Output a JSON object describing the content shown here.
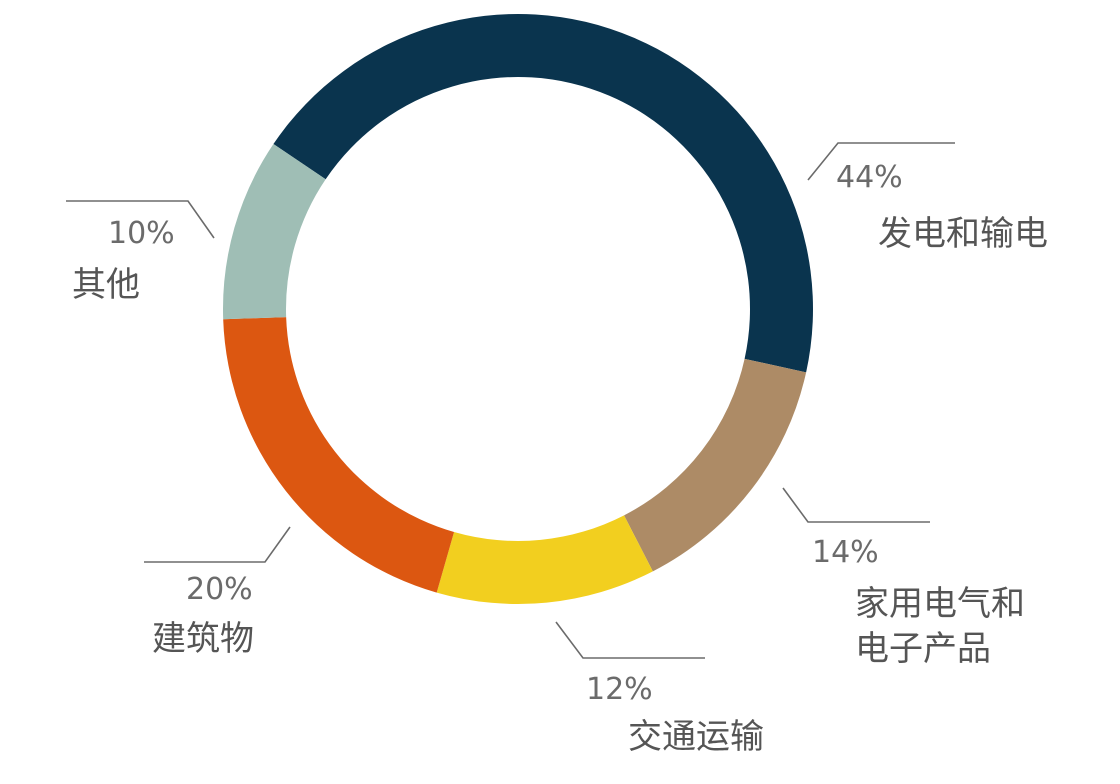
{
  "chart_data": {
    "type": "pie",
    "style": "donut",
    "slices": [
      {
        "label": "发电和输电",
        "label_lines": [
          "发电和输电"
        ],
        "value": 44,
        "value_label": "44%",
        "color": "#0a344e"
      },
      {
        "label": "家用电气和电子产品",
        "label_lines": [
          "家用电气和",
          "电子产品"
        ],
        "value": 14,
        "value_label": "14%",
        "color": "#ad8b66"
      },
      {
        "label": "交通运输",
        "label_lines": [
          "交通运输"
        ],
        "value": 12,
        "value_label": "12%",
        "color": "#f2cf1f"
      },
      {
        "label": "建筑物",
        "label_lines": [
          "建筑物"
        ],
        "value": 20,
        "value_label": "20%",
        "color": "#dc5711"
      },
      {
        "label": "其他",
        "label_lines": [
          "其他"
        ],
        "value": 10,
        "value_label": "10%",
        "color": "#9fbeb5"
      }
    ],
    "leader_line_color": "#6b6b6b",
    "label_color": "#555555"
  }
}
